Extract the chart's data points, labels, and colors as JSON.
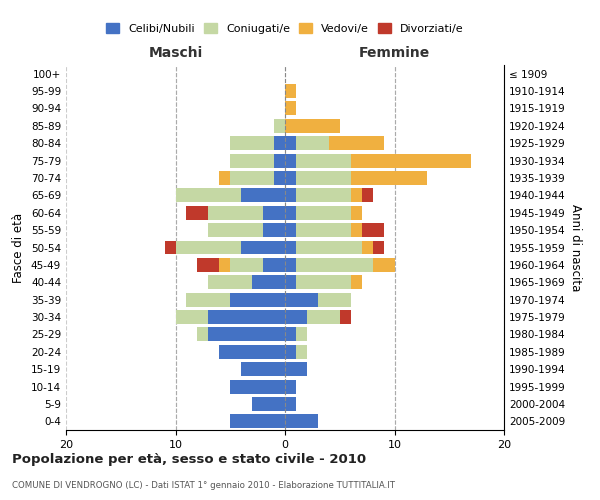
{
  "age_groups": [
    "0-4",
    "5-9",
    "10-14",
    "15-19",
    "20-24",
    "25-29",
    "30-34",
    "35-39",
    "40-44",
    "45-49",
    "50-54",
    "55-59",
    "60-64",
    "65-69",
    "70-74",
    "75-79",
    "80-84",
    "85-89",
    "90-94",
    "95-99",
    "100+"
  ],
  "birth_years": [
    "2005-2009",
    "2000-2004",
    "1995-1999",
    "1990-1994",
    "1985-1989",
    "1980-1984",
    "1975-1979",
    "1970-1974",
    "1965-1969",
    "1960-1964",
    "1955-1959",
    "1950-1954",
    "1945-1949",
    "1940-1944",
    "1935-1939",
    "1930-1934",
    "1925-1929",
    "1920-1924",
    "1915-1919",
    "1910-1914",
    "≤ 1909"
  ],
  "maschi": {
    "celibi": [
      5,
      3,
      5,
      4,
      6,
      7,
      7,
      5,
      3,
      2,
      4,
      2,
      2,
      4,
      1,
      1,
      1,
      0,
      0,
      0,
      0
    ],
    "coniugati": [
      0,
      0,
      0,
      0,
      0,
      1,
      3,
      4,
      4,
      3,
      6,
      5,
      5,
      6,
      4,
      4,
      4,
      1,
      0,
      0,
      0
    ],
    "vedovi": [
      0,
      0,
      0,
      0,
      0,
      0,
      0,
      0,
      0,
      1,
      0,
      0,
      0,
      0,
      1,
      0,
      0,
      0,
      0,
      0,
      0
    ],
    "divorziati": [
      0,
      0,
      0,
      0,
      0,
      0,
      0,
      0,
      0,
      2,
      1,
      0,
      2,
      0,
      0,
      0,
      0,
      0,
      0,
      0,
      0
    ]
  },
  "femmine": {
    "nubili": [
      3,
      1,
      1,
      2,
      1,
      1,
      2,
      3,
      1,
      1,
      1,
      1,
      1,
      1,
      1,
      1,
      1,
      0,
      0,
      0,
      0
    ],
    "coniugate": [
      0,
      0,
      0,
      0,
      1,
      1,
      3,
      3,
      5,
      7,
      6,
      5,
      5,
      5,
      5,
      5,
      3,
      0,
      0,
      0,
      0
    ],
    "vedove": [
      0,
      0,
      0,
      0,
      0,
      0,
      0,
      0,
      1,
      2,
      1,
      1,
      1,
      1,
      7,
      11,
      5,
      5,
      1,
      1,
      0
    ],
    "divorziate": [
      0,
      0,
      0,
      0,
      0,
      0,
      1,
      0,
      0,
      0,
      1,
      2,
      0,
      1,
      0,
      0,
      0,
      0,
      0,
      0,
      0
    ]
  },
  "colors": {
    "celibi": "#4472c4",
    "coniugati": "#c5d8a4",
    "vedovi": "#f0b040",
    "divorziati": "#c0392b"
  },
  "title": "Popolazione per età, sesso e stato civile - 2010",
  "subtitle": "COMUNE DI VENDROGNO (LC) - Dati ISTAT 1° gennaio 2010 - Elaborazione TUTTITALIA.IT",
  "xlabel_left": "Maschi",
  "xlabel_right": "Femmine",
  "ylabel_left": "Fasce di età",
  "ylabel_right": "Anni di nascita",
  "xlim": 20,
  "background_color": "#ffffff",
  "legend_labels": [
    "Celibi/Nubili",
    "Coniugati/e",
    "Vedovi/e",
    "Divorziati/e"
  ]
}
